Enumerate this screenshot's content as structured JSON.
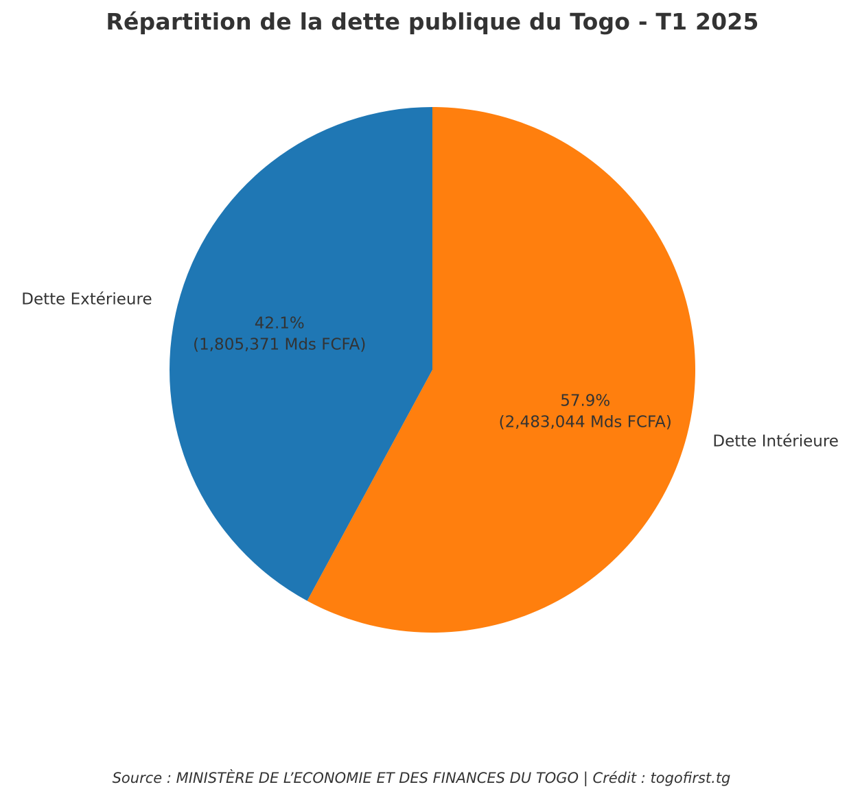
{
  "chart_data": {
    "type": "pie",
    "title": "Répartition de la dette publique du Togo - T1 2025",
    "slices": [
      {
        "label": "Dette Extérieure",
        "value": 1805.371,
        "percent_label": "42.1%",
        "value_label": "(1,805,371 Mds FCFA)",
        "color": "#1f77b4"
      },
      {
        "label": "Dette Intérieure",
        "value": 2483.044,
        "percent_label": "57.9%",
        "value_label": "(2,483,044 Mds FCFA)",
        "color": "#ff7f0e"
      }
    ],
    "start_angle_deg": 90,
    "direction": "counterclockwise"
  },
  "footer": {
    "source": "Source : MINISTÈRE DE L’ECONOMIE ET DES FINANCES DU TOGO | Crédit : togofirst.tg"
  }
}
